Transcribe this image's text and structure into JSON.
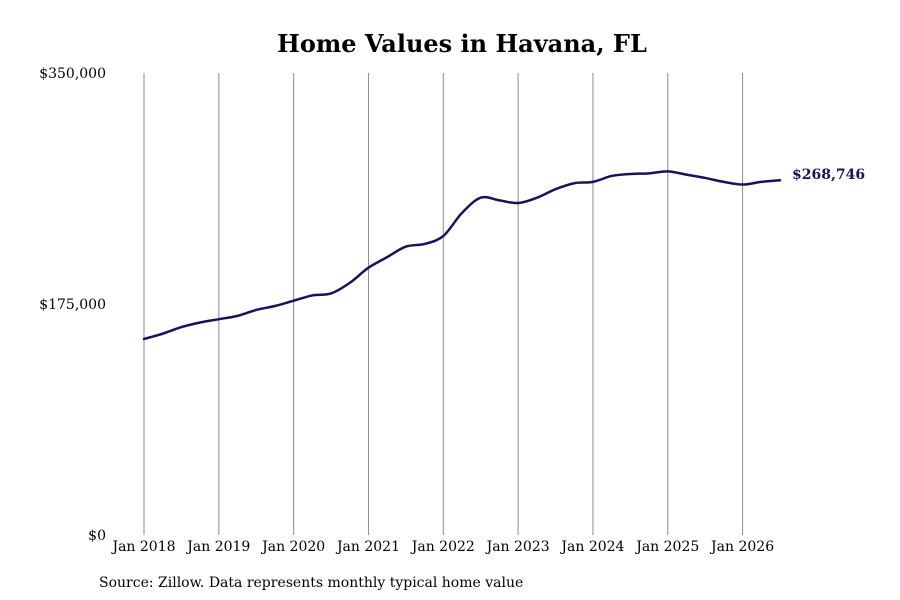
{
  "chart_data": {
    "type": "line",
    "title": "Home Values in Havana, FL",
    "source": "Source: Zillow. Data represents monthly typical home value",
    "y_ticks": [
      "$0",
      "$175,000",
      "$350,000"
    ],
    "y_tick_values": [
      0,
      175000,
      350000
    ],
    "ylim": [
      0,
      350000
    ],
    "x_ticks": [
      "Jan 2018",
      "Jan 2019",
      "Jan 2020",
      "Jan 2021",
      "Jan 2022",
      "Jan 2023",
      "Jan 2024",
      "Jan 2025",
      "Jan 2026"
    ],
    "x_tick_values": [
      "2018-01",
      "2019-01",
      "2020-01",
      "2021-01",
      "2022-01",
      "2023-01",
      "2024-01",
      "2025-01",
      "2026-01"
    ],
    "x_range": [
      "2018-01",
      "2026-07"
    ],
    "grid": "vertical",
    "line_color": "#14145a",
    "end_label": "$268,746",
    "end_value": 268746,
    "series": [
      {
        "x": [
          "2018-01",
          "2018-04",
          "2018-07",
          "2018-10",
          "2019-01",
          "2019-04",
          "2019-07",
          "2019-10",
          "2020-01",
          "2020-04",
          "2020-07",
          "2020-10",
          "2021-01",
          "2021-04",
          "2021-07",
          "2021-10",
          "2022-01",
          "2022-04",
          "2022-07",
          "2022-10",
          "2023-01",
          "2023-04",
          "2023-07",
          "2023-10",
          "2024-01",
          "2024-04",
          "2024-07",
          "2024-10",
          "2025-01",
          "2025-04",
          "2025-07",
          "2025-10",
          "2026-01",
          "2026-04",
          "2026-07"
        ],
        "values": [
          148500,
          152500,
          157500,
          161000,
          163500,
          166000,
          170500,
          173500,
          177500,
          181500,
          183000,
          191000,
          202500,
          210500,
          218500,
          220500,
          226500,
          244000,
          255500,
          253500,
          251500,
          255500,
          262000,
          266500,
          267500,
          272000,
          273500,
          274000,
          275500,
          273000,
          270500,
          267500,
          265500,
          267500,
          268746
        ]
      }
    ]
  }
}
